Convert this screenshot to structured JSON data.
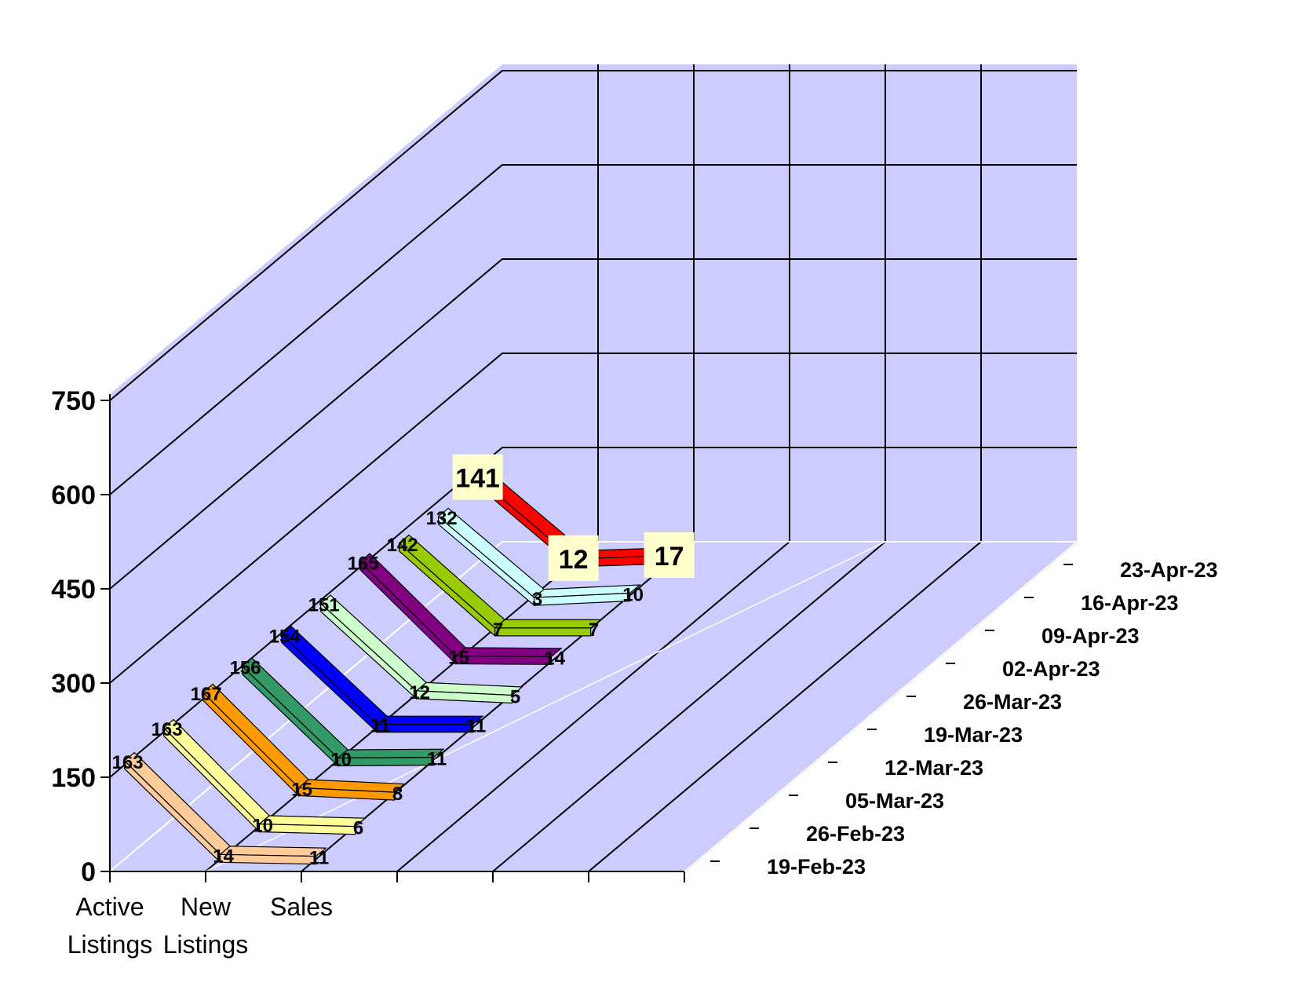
{
  "chart_data": {
    "type": "line",
    "subtype": "3d-line",
    "categories": [
      "Active Listings",
      "New Listings",
      "Sales"
    ],
    "category_labels": [
      [
        "Active",
        "Listings"
      ],
      [
        "New",
        "Listings"
      ],
      [
        "Sales"
      ]
    ],
    "ylim": [
      0,
      750
    ],
    "yticks": [
      "0",
      "150",
      "300",
      "450",
      "600",
      "750"
    ],
    "grid": true,
    "series": [
      {
        "date": "19-Feb-23",
        "values": [
          163,
          14,
          11
        ],
        "labels": [
          "163",
          "14",
          "11"
        ],
        "color": "#ffcc99"
      },
      {
        "date": "26-Feb-23",
        "values": [
          163,
          10,
          6
        ],
        "labels": [
          "163",
          "10",
          "6"
        ],
        "color": "#ffff99"
      },
      {
        "date": "05-Mar-23",
        "values": [
          167,
          15,
          8
        ],
        "labels": [
          "167",
          "15",
          "8"
        ],
        "color": "#ff9900"
      },
      {
        "date": "12-Mar-23",
        "values": [
          156,
          10,
          11
        ],
        "labels": [
          "156",
          "10",
          "11"
        ],
        "color": "#339966"
      },
      {
        "date": "19-Mar-23",
        "values": [
          154,
          11,
          11
        ],
        "labels": [
          "154",
          "11",
          "11"
        ],
        "color": "#0000ff"
      },
      {
        "date": "26-Mar-23",
        "values": [
          151,
          12,
          5
        ],
        "labels": [
          "151",
          "12",
          "5"
        ],
        "color": "#ccffcc"
      },
      {
        "date": "02-Apr-23",
        "values": [
          165,
          15,
          14
        ],
        "labels": [
          "165",
          "15",
          "14"
        ],
        "color": "#800080"
      },
      {
        "date": "09-Apr-23",
        "values": [
          142,
          7,
          7
        ],
        "labels": [
          "142",
          "7",
          "7"
        ],
        "color": "#99cc00"
      },
      {
        "date": "16-Apr-23",
        "values": [
          132,
          3,
          10
        ],
        "labels": [
          "132",
          "3",
          "10"
        ],
        "color": "#ccffff"
      },
      {
        "date": "23-Apr-23",
        "values": [
          141,
          12,
          17
        ],
        "labels": [
          "141",
          "12",
          "17"
        ],
        "color": "#ff0000"
      }
    ],
    "highlight_label_bg": "#ffffcc",
    "wall_color": "#ccccff"
  }
}
